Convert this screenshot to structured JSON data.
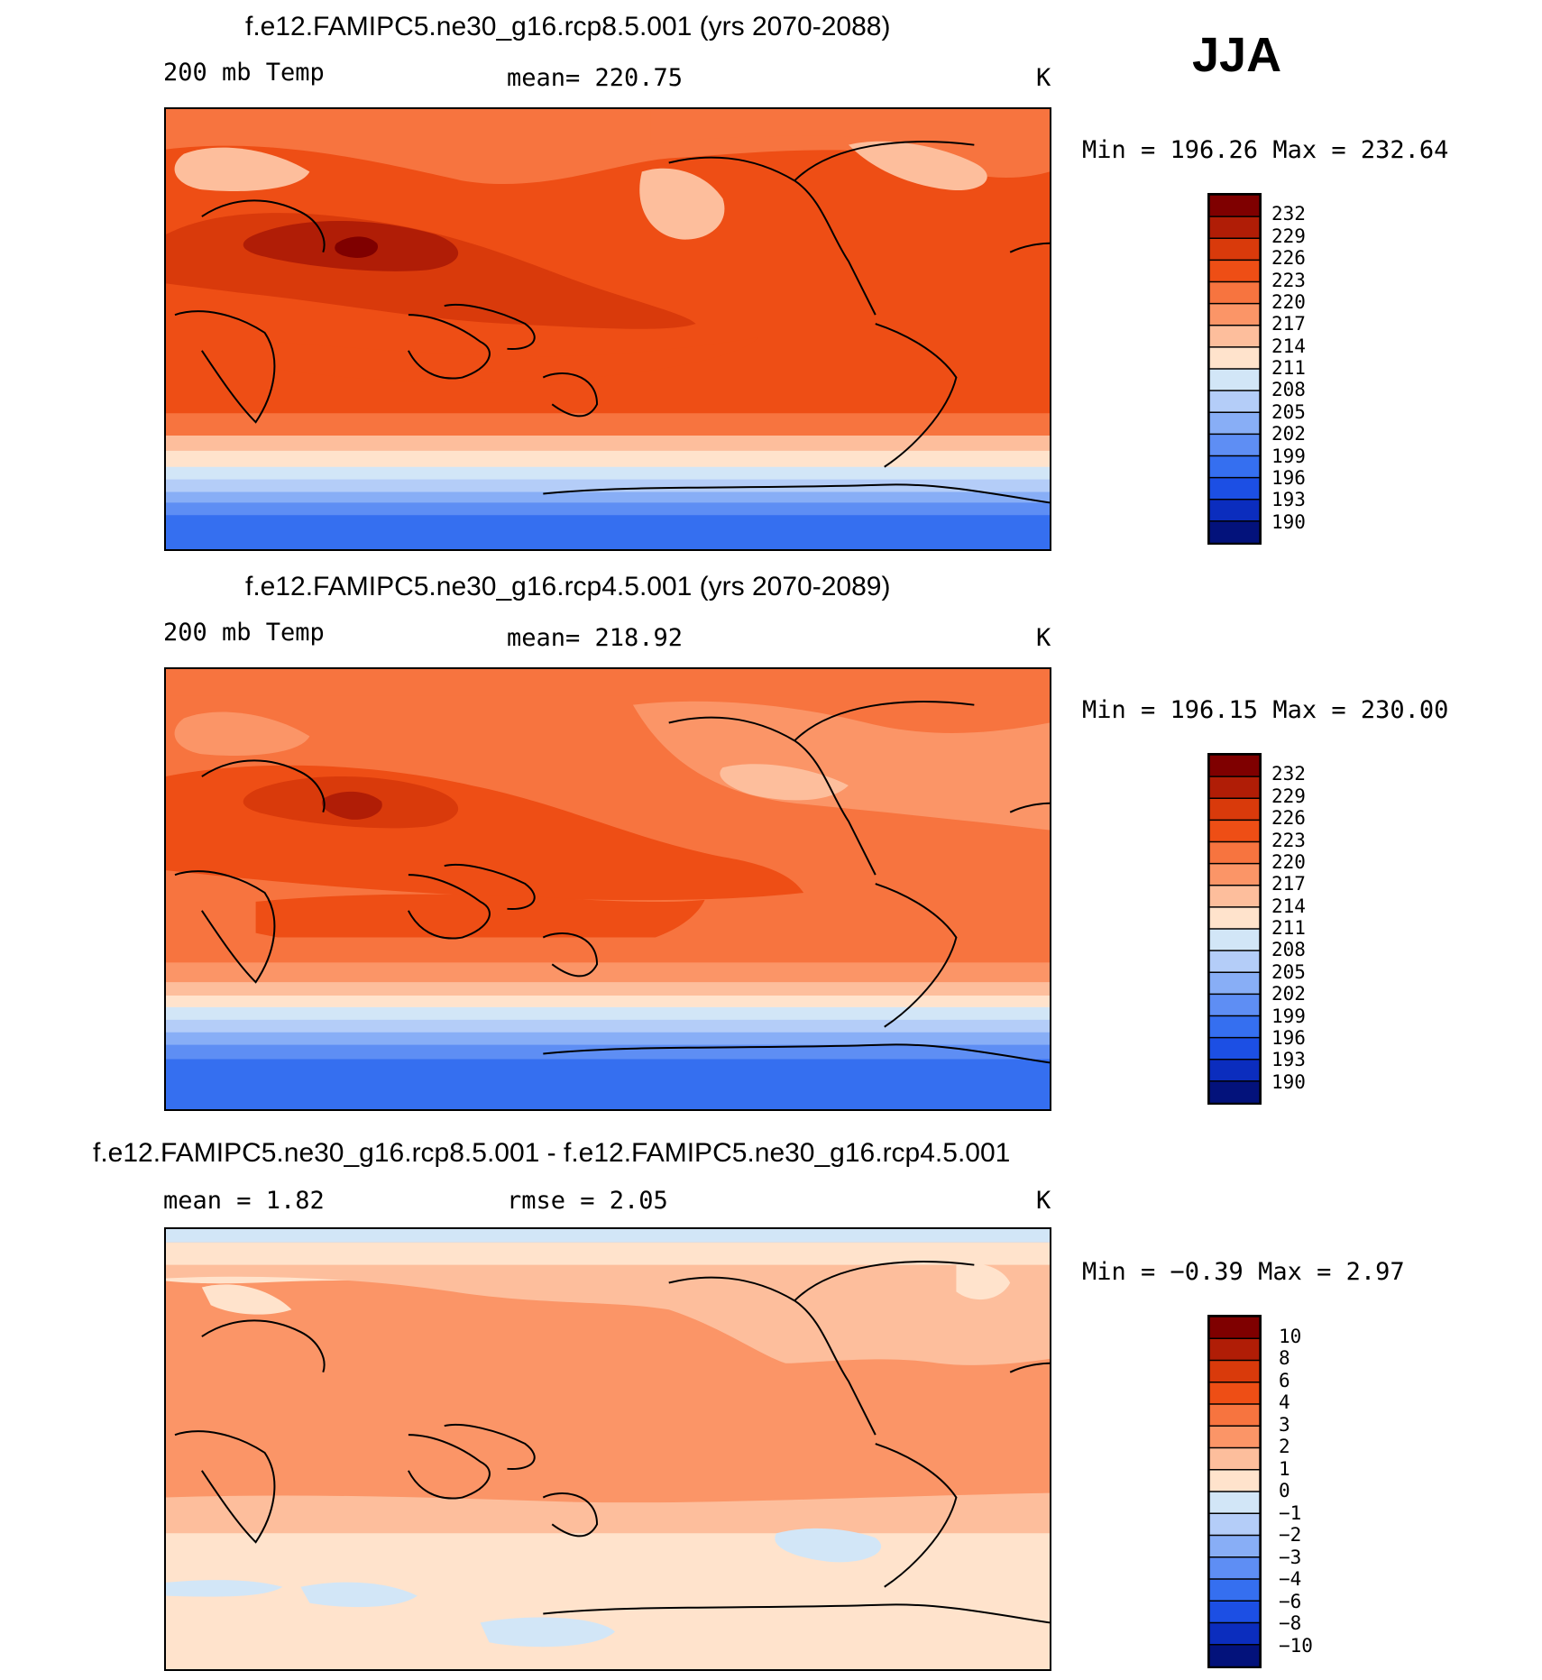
{
  "season": "JJA",
  "panels": [
    {
      "title": "f.e12.FAMIPC5.ne30_g16.rcp8.5.001 (yrs 2070-2088)",
      "left_label": "200 mb Temp",
      "center_label": "mean=  220.75",
      "units": "K",
      "minmax": "Min  =  196.26  Max  =  232.64",
      "colorbar": {
        "labels": [
          "232",
          "229",
          "226",
          "223",
          "220",
          "217",
          "214",
          "211",
          "208",
          "205",
          "202",
          "199",
          "196",
          "193",
          "190"
        ],
        "colors": [
          "#7f0000",
          "#b01d06",
          "#d93a0b",
          "#ee4e15",
          "#f7743f",
          "#fb9567",
          "#fdbe9c",
          "#ffe3cc",
          "#d2e6f7",
          "#b4cdf8",
          "#88aef6",
          "#5e8ef4",
          "#356ff0",
          "#1c4fe4",
          "#0b2dbe",
          "#03127b"
        ]
      }
    },
    {
      "title": "f.e12.FAMIPC5.ne30_g16.rcp4.5.001 (yrs 2070-2089)",
      "left_label": "200 mb Temp",
      "center_label": "mean=  218.92",
      "units": "K",
      "minmax": "Min  =  196.15  Max  =  230.00",
      "colorbar": {
        "labels": [
          "232",
          "229",
          "226",
          "223",
          "220",
          "217",
          "214",
          "211",
          "208",
          "205",
          "202",
          "199",
          "196",
          "193",
          "190"
        ],
        "colors": [
          "#7f0000",
          "#b01d06",
          "#d93a0b",
          "#ee4e15",
          "#f7743f",
          "#fb9567",
          "#fdbe9c",
          "#ffe3cc",
          "#d2e6f7",
          "#b4cdf8",
          "#88aef6",
          "#5e8ef4",
          "#356ff0",
          "#1c4fe4",
          "#0b2dbe",
          "#03127b"
        ]
      }
    },
    {
      "title": "f.e12.FAMIPC5.ne30_g16.rcp8.5.001 - f.e12.FAMIPC5.ne30_g16.rcp4.5.001",
      "left_label": "mean  =     1.82",
      "center_label": "rmse  =     2.05",
      "units": "K",
      "minmax": "Min  =    −0.39  Max  =     2.97",
      "colorbar": {
        "labels": [
          "10",
          "8",
          "6",
          "4",
          "3",
          "2",
          "1",
          "0",
          "−1",
          "−2",
          "−3",
          "−4",
          "−6",
          "−8",
          "−10"
        ],
        "colors": [
          "#7f0000",
          "#b01d06",
          "#d93a0b",
          "#ee4e15",
          "#f7743f",
          "#fb9567",
          "#fdbe9c",
          "#ffe3cc",
          "#d2e6f7",
          "#b4cdf8",
          "#88aef6",
          "#5e8ef4",
          "#356ff0",
          "#1c4fe4",
          "#0b2dbe",
          "#03127b"
        ]
      }
    }
  ]
}
